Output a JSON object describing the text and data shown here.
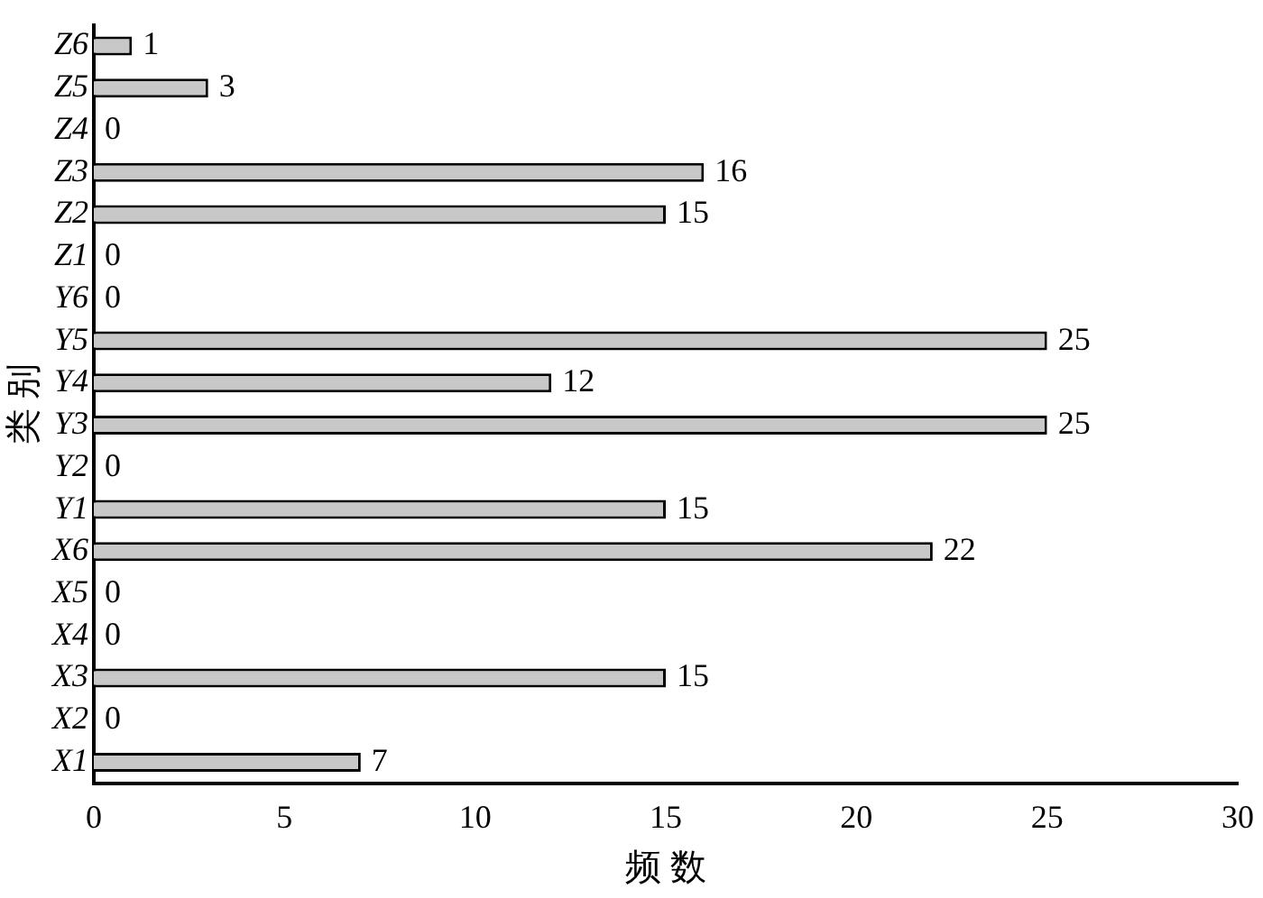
{
  "chart_data": {
    "type": "bar",
    "orientation": "horizontal",
    "xlabel": "频 数",
    "ylabel": "类 别",
    "categories": [
      "Z6",
      "Z5",
      "Z4",
      "Z3",
      "Z2",
      "Z1",
      "Y6",
      "Y5",
      "Y4",
      "Y3",
      "Y2",
      "Y1",
      "X6",
      "X5",
      "X4",
      "X3",
      "X2",
      "X1"
    ],
    "values": [
      1,
      3,
      0,
      16,
      15,
      0,
      0,
      25,
      12,
      25,
      0,
      15,
      22,
      0,
      0,
      15,
      0,
      7
    ],
    "color": "#c8c8c8",
    "xlim": [
      0,
      30
    ],
    "xticks": [
      0,
      5,
      10,
      15,
      20,
      25,
      30
    ],
    "grid": false,
    "legend": false,
    "data_labels": true
  }
}
